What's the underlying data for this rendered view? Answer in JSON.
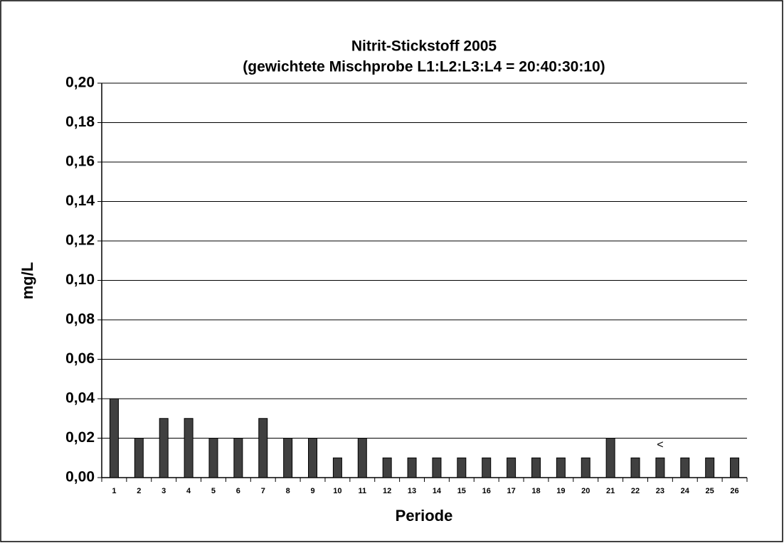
{
  "chart_data": {
    "type": "bar",
    "title": "Nitrit-Stickstoff 2005",
    "subtitle": "(gewichtete Mischprobe L1:L2:L3:L4 = 20:40:30:10)",
    "x_label": "Periode",
    "y_label": "mg/L",
    "categories": [
      "1",
      "2",
      "3",
      "4",
      "5",
      "6",
      "7",
      "8",
      "9",
      "10",
      "11",
      "12",
      "13",
      "14",
      "15",
      "16",
      "17",
      "18",
      "19",
      "20",
      "21",
      "22",
      "23",
      "24",
      "25",
      "26"
    ],
    "values": [
      0.04,
      0.02,
      0.03,
      0.03,
      0.02,
      0.02,
      0.03,
      0.02,
      0.02,
      0.01,
      0.02,
      0.01,
      0.01,
      0.01,
      0.01,
      0.01,
      0.01,
      0.01,
      0.01,
      0.01,
      0.02,
      0.01,
      0.01,
      0.01,
      0.01,
      0.01
    ],
    "color": "#404040",
    "ylim": [
      0,
      0.2
    ],
    "yticks": [
      {
        "value": 0,
        "label": "0,00"
      },
      {
        "value": 0.02,
        "label": "0,02"
      },
      {
        "value": 0.04,
        "label": "0,04"
      },
      {
        "value": 0.06,
        "label": "0,06"
      },
      {
        "value": 0.08,
        "label": "0,08"
      },
      {
        "value": 0.1,
        "label": "0,10"
      },
      {
        "value": 0.12,
        "label": "0,12"
      },
      {
        "value": 0.14,
        "label": "0,14"
      },
      {
        "value": 0.16,
        "label": "0,16"
      },
      {
        "value": 0.18,
        "label": "0,18"
      },
      {
        "value": 0.2,
        "label": "0,20"
      }
    ],
    "grid": true,
    "annotations": [
      {
        "text": "<",
        "category": "23"
      }
    ]
  }
}
